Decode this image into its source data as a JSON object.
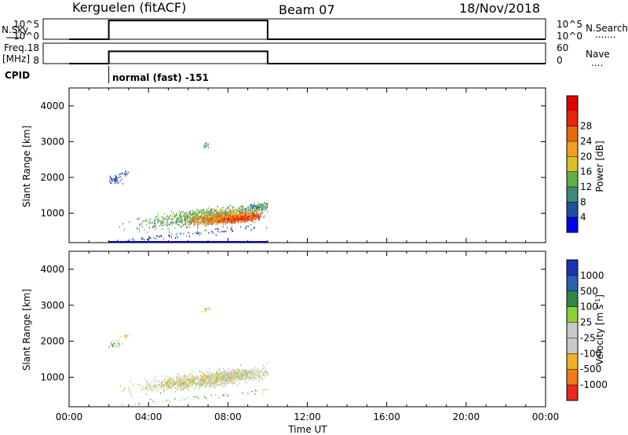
{
  "header": {
    "station": "Kerguelen (fitACF)",
    "beam": "Beam 07",
    "date": "18/Nov/2018"
  },
  "nsky_panel": {
    "left_label": "N.Sky",
    "left_ticks": [
      "10^5",
      "10^0"
    ],
    "right_ticks": [
      "10^5",
      "10^0"
    ],
    "right_label": "N.Search",
    "right_marker": "......."
  },
  "freq_panel": {
    "left_label_1": "Freq.",
    "left_label_2": "[MHz]",
    "left_ticks": [
      "18",
      "8"
    ],
    "right_ticks": [
      "60",
      "0"
    ],
    "right_label": "Nave",
    "right_marker": "...."
  },
  "cpid": {
    "label": "CPID",
    "text": "normal (fast) -151",
    "time_hours": 2.0
  },
  "colorbars": {
    "power": {
      "label": "Power [dB]",
      "ticks": [
        "4",
        "8",
        "12",
        "16",
        "20",
        "24",
        "28"
      ],
      "colors": [
        "#0000ee",
        "#1f4fa0",
        "#3e8a78",
        "#5fb04a",
        "#d8c028",
        "#f0a020",
        "#e86a10",
        "#e02a0a",
        "#dd0000"
      ]
    },
    "velocity": {
      "label": "Velocity [m s^-1]",
      "ticks": [
        "1000",
        "500",
        "100",
        "25",
        "-25",
        "-100",
        "-500",
        "-1000"
      ],
      "colors": [
        "#1836b4",
        "#2c60b0",
        "#2f8a4a",
        "#8ccf38",
        "#c8c8c8",
        "#c8c8c8",
        "#f0b02a",
        "#ef7a18",
        "#e8281c"
      ]
    }
  },
  "chart_data": [
    {
      "type": "line",
      "title": "N.Sky / N.Search",
      "x": [
        0,
        2.0,
        2.0,
        10.0,
        10.0,
        24
      ],
      "y_nsky_log10": [
        0,
        0,
        4.6,
        4.6,
        0,
        0
      ],
      "xlim": [
        0,
        24
      ],
      "ylim_log10": [
        0,
        5
      ]
    },
    {
      "type": "line",
      "title": "Freq. / Nave",
      "x": [
        0,
        2.0,
        2.0,
        10.0,
        10.0,
        24
      ],
      "y_freq_mhz": [
        8,
        8,
        14,
        14,
        8,
        8
      ],
      "xlim": [
        0,
        24
      ],
      "ylim": [
        8,
        18
      ],
      "ylim_right": [
        0,
        60
      ]
    },
    {
      "type": "heatmap",
      "title": "",
      "xlabel": "",
      "ylabel": "Slant Range [km]",
      "parameter": "Power [dB]",
      "xlim": [
        0,
        24
      ],
      "ylim": [
        180,
        4500
      ],
      "yticks": [
        1000,
        2000,
        3000,
        4000
      ],
      "clim": [
        0,
        32
      ],
      "blobs": [
        {
          "t": 6.8,
          "r": 860,
          "dt": 3.0,
          "dr": 200,
          "v": 12,
          "n": 650
        },
        {
          "t": 6.8,
          "r": 960,
          "dt": 2.6,
          "dr": 170,
          "v": 15,
          "n": 250
        },
        {
          "t": 7.8,
          "r": 840,
          "dt": 1.7,
          "dr": 130,
          "v": 24,
          "n": 600
        },
        {
          "t": 8.6,
          "r": 820,
          "dt": 1.0,
          "dr": 100,
          "v": 28,
          "n": 300
        },
        {
          "t": 9.5,
          "r": 1150,
          "dt": 0.8,
          "dr": 110,
          "v": 10,
          "n": 140
        },
        {
          "t": 2.3,
          "r": 1900,
          "dt": 0.4,
          "dr": 140,
          "v": 5,
          "n": 45
        },
        {
          "t": 2.8,
          "r": 2100,
          "dt": 0.2,
          "dr": 70,
          "v": 6,
          "n": 14
        },
        {
          "t": 6.9,
          "r": 2880,
          "dt": 0.2,
          "dr": 80,
          "v": 12,
          "n": 16
        },
        {
          "t": 6.0,
          "r": 400,
          "dt": 7.5,
          "dr": 100,
          "v": 6,
          "n": 120
        }
      ],
      "ground_line": {
        "t0": 2.0,
        "t1": 10.0,
        "r": 180,
        "v": 2
      }
    },
    {
      "type": "heatmap",
      "title": "",
      "xlabel": "Time UT",
      "ylabel": "Slant Range [km]",
      "parameter": "Velocity [m s^-1]",
      "xlim": [
        0,
        24
      ],
      "ylim": [
        180,
        4500
      ],
      "xticks": [
        "00:00",
        "04:00",
        "08:00",
        "12:00",
        "16:00",
        "20:00",
        "00:00"
      ],
      "yticks": [
        1000,
        2000,
        3000,
        4000
      ],
      "blobs": [
        {
          "t": 6.9,
          "r": 900,
          "dt": 3.0,
          "dr": 220,
          "v": 0,
          "n": 900
        },
        {
          "t": 8.5,
          "r": 1050,
          "dt": 1.4,
          "dr": 150,
          "v": 0,
          "n": 220
        },
        {
          "t": 6.5,
          "r": 880,
          "dt": 3.0,
          "dr": 160,
          "v": -200,
          "n": 160
        },
        {
          "t": 2.3,
          "r": 1900,
          "dt": 0.3,
          "dr": 100,
          "v": 60,
          "n": 30
        },
        {
          "t": 2.8,
          "r": 2100,
          "dt": 0.2,
          "dr": 60,
          "v": -150,
          "n": 10
        },
        {
          "t": 6.9,
          "r": 2850,
          "dt": 0.2,
          "dr": 70,
          "v": -300,
          "n": 12
        },
        {
          "t": 6.0,
          "r": 380,
          "dt": 7.5,
          "dr": 80,
          "v": 80,
          "n": 60
        }
      ]
    }
  ]
}
